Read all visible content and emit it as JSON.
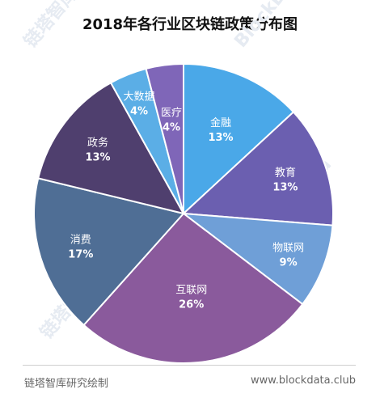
{
  "chart_data": {
    "type": "pie",
    "title": "2018年各行业区块链政策分布图",
    "slices": [
      {
        "label": "金融",
        "value": 13,
        "value_label": "13%",
        "color": "#4aa8e8"
      },
      {
        "label": "教育",
        "value": 13,
        "value_label": "13%",
        "color": "#6b5fb0"
      },
      {
        "label": "物联网",
        "value": 9,
        "value_label": "9%",
        "color": "#6f9fd7"
      },
      {
        "label": "互联网",
        "value": 26,
        "value_label": "26%",
        "color": "#8a5a9c"
      },
      {
        "label": "消费",
        "value": 17,
        "value_label": "17%",
        "color": "#4f6e95"
      },
      {
        "label": "政务",
        "value": 13,
        "value_label": "13%",
        "color": "#4f3f6e"
      },
      {
        "label": "大数据",
        "value": 4,
        "value_label": "4%",
        "color": "#5baee6"
      },
      {
        "label": "医疗",
        "value": 4,
        "value_label": "4%",
        "color": "#7f66b8"
      }
    ],
    "start_angle_deg": 0,
    "direction": "clockwise",
    "label_color": "#ffffff"
  },
  "footer": {
    "source": "链塔智库研究绘制",
    "url": "www.blockdata.club"
  },
  "watermarks": [
    "链塔智库",
    "BlockData",
    "链塔智库",
    "BlockData",
    "链塔智库",
    "BlockData"
  ]
}
